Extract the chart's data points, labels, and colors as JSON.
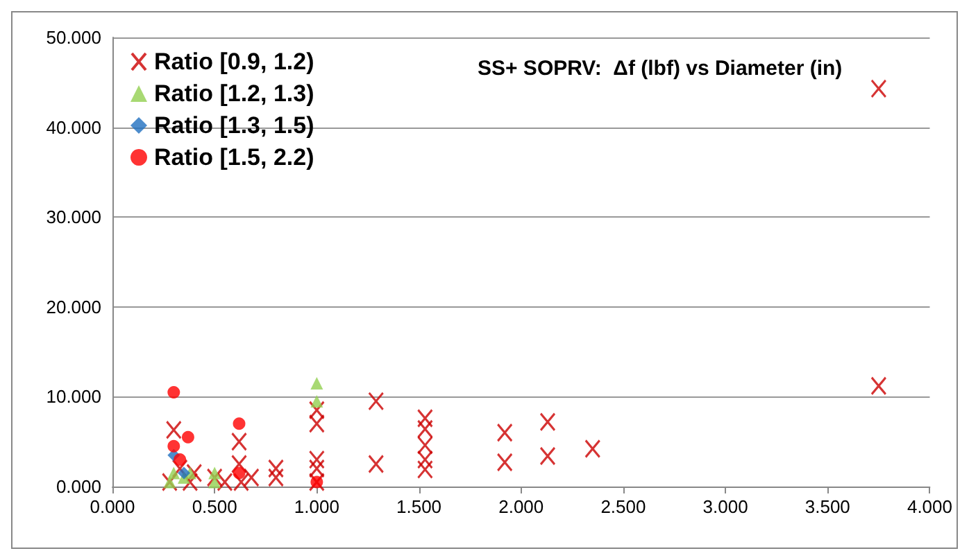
{
  "chart_data": {
    "type": "scatter",
    "title": "SS+ SOPRV:  Δf (lbf) vs Diameter (in)",
    "xlim": [
      0,
      4
    ],
    "xticks": [
      {
        "value": 0,
        "label": "0.000"
      },
      {
        "value": 0.5,
        "label": "0.500"
      },
      {
        "value": 1,
        "label": "1.000"
      },
      {
        "value": 1.5,
        "label": "1.500"
      },
      {
        "value": 2,
        "label": "2.000"
      },
      {
        "value": 2.5,
        "label": "2.500"
      },
      {
        "value": 3,
        "label": "3.000"
      },
      {
        "value": 3.5,
        "label": "3.500"
      },
      {
        "value": 4,
        "label": "4.000"
      }
    ],
    "ylim": [
      0,
      50
    ],
    "yticks": [
      {
        "value": 0,
        "label": "0.000"
      },
      {
        "value": 10,
        "label": "10.000"
      },
      {
        "value": 20,
        "label": "20.000"
      },
      {
        "value": 30,
        "label": "30.000"
      },
      {
        "value": 40,
        "label": "40.000"
      },
      {
        "value": 50,
        "label": "50.000"
      }
    ],
    "grid": "y",
    "legend": "top left",
    "series": [
      {
        "name": "Ratio [0.9, 1.2)",
        "color": "#cc0000",
        "marker": "cross",
        "x": [
          0.28,
          0.3,
          0.33,
          0.38,
          0.4,
          0.5,
          0.55,
          0.62,
          0.62,
          0.63,
          0.68,
          0.8,
          0.8,
          1.0,
          1.0,
          1.0,
          1.0,
          1.0,
          1.29,
          1.29,
          1.53,
          1.53,
          1.53,
          1.53,
          1.53,
          1.92,
          1.92,
          2.13,
          2.13,
          2.35,
          3.75,
          3.75
        ],
        "values": [
          0.5,
          6.3,
          2,
          0.5,
          1.5,
          1,
          0.5,
          5,
          2.5,
          0.5,
          1,
          1,
          2,
          0.5,
          2,
          3,
          7,
          8.5,
          9.5,
          2.5,
          7.6,
          6.4,
          4.6,
          3,
          1.9,
          6,
          2.7,
          7.2,
          3.4,
          4.2,
          44.3,
          11.2
        ]
      },
      {
        "name": "Ratio [1.2, 1.3)",
        "color": "#92d050",
        "marker": "triangle",
        "x": [
          0.28,
          0.3,
          0.32,
          0.35,
          0.38,
          0.5,
          0.5,
          1.0,
          1.0
        ],
        "values": [
          0.5,
          1.5,
          null,
          1,
          1.5,
          1.5,
          0.5,
          11.5,
          9.5
        ]
      },
      {
        "name": "Ratio [1.3, 1.5)",
        "color": "#1f6fbf",
        "marker": "diamond",
        "x": [
          0.3,
          0.32,
          0.35
        ],
        "values": [
          3.5,
          null,
          1.5
        ]
      },
      {
        "name": "Ratio [1.5, 2.2)",
        "color": "#ff0000",
        "marker": "circle",
        "x": [
          0.3,
          0.3,
          0.33,
          0.37,
          0.62,
          0.62,
          1.0
        ],
        "values": [
          10.5,
          4.5,
          3,
          5.5,
          7,
          1.5,
          0.5
        ]
      }
    ]
  }
}
